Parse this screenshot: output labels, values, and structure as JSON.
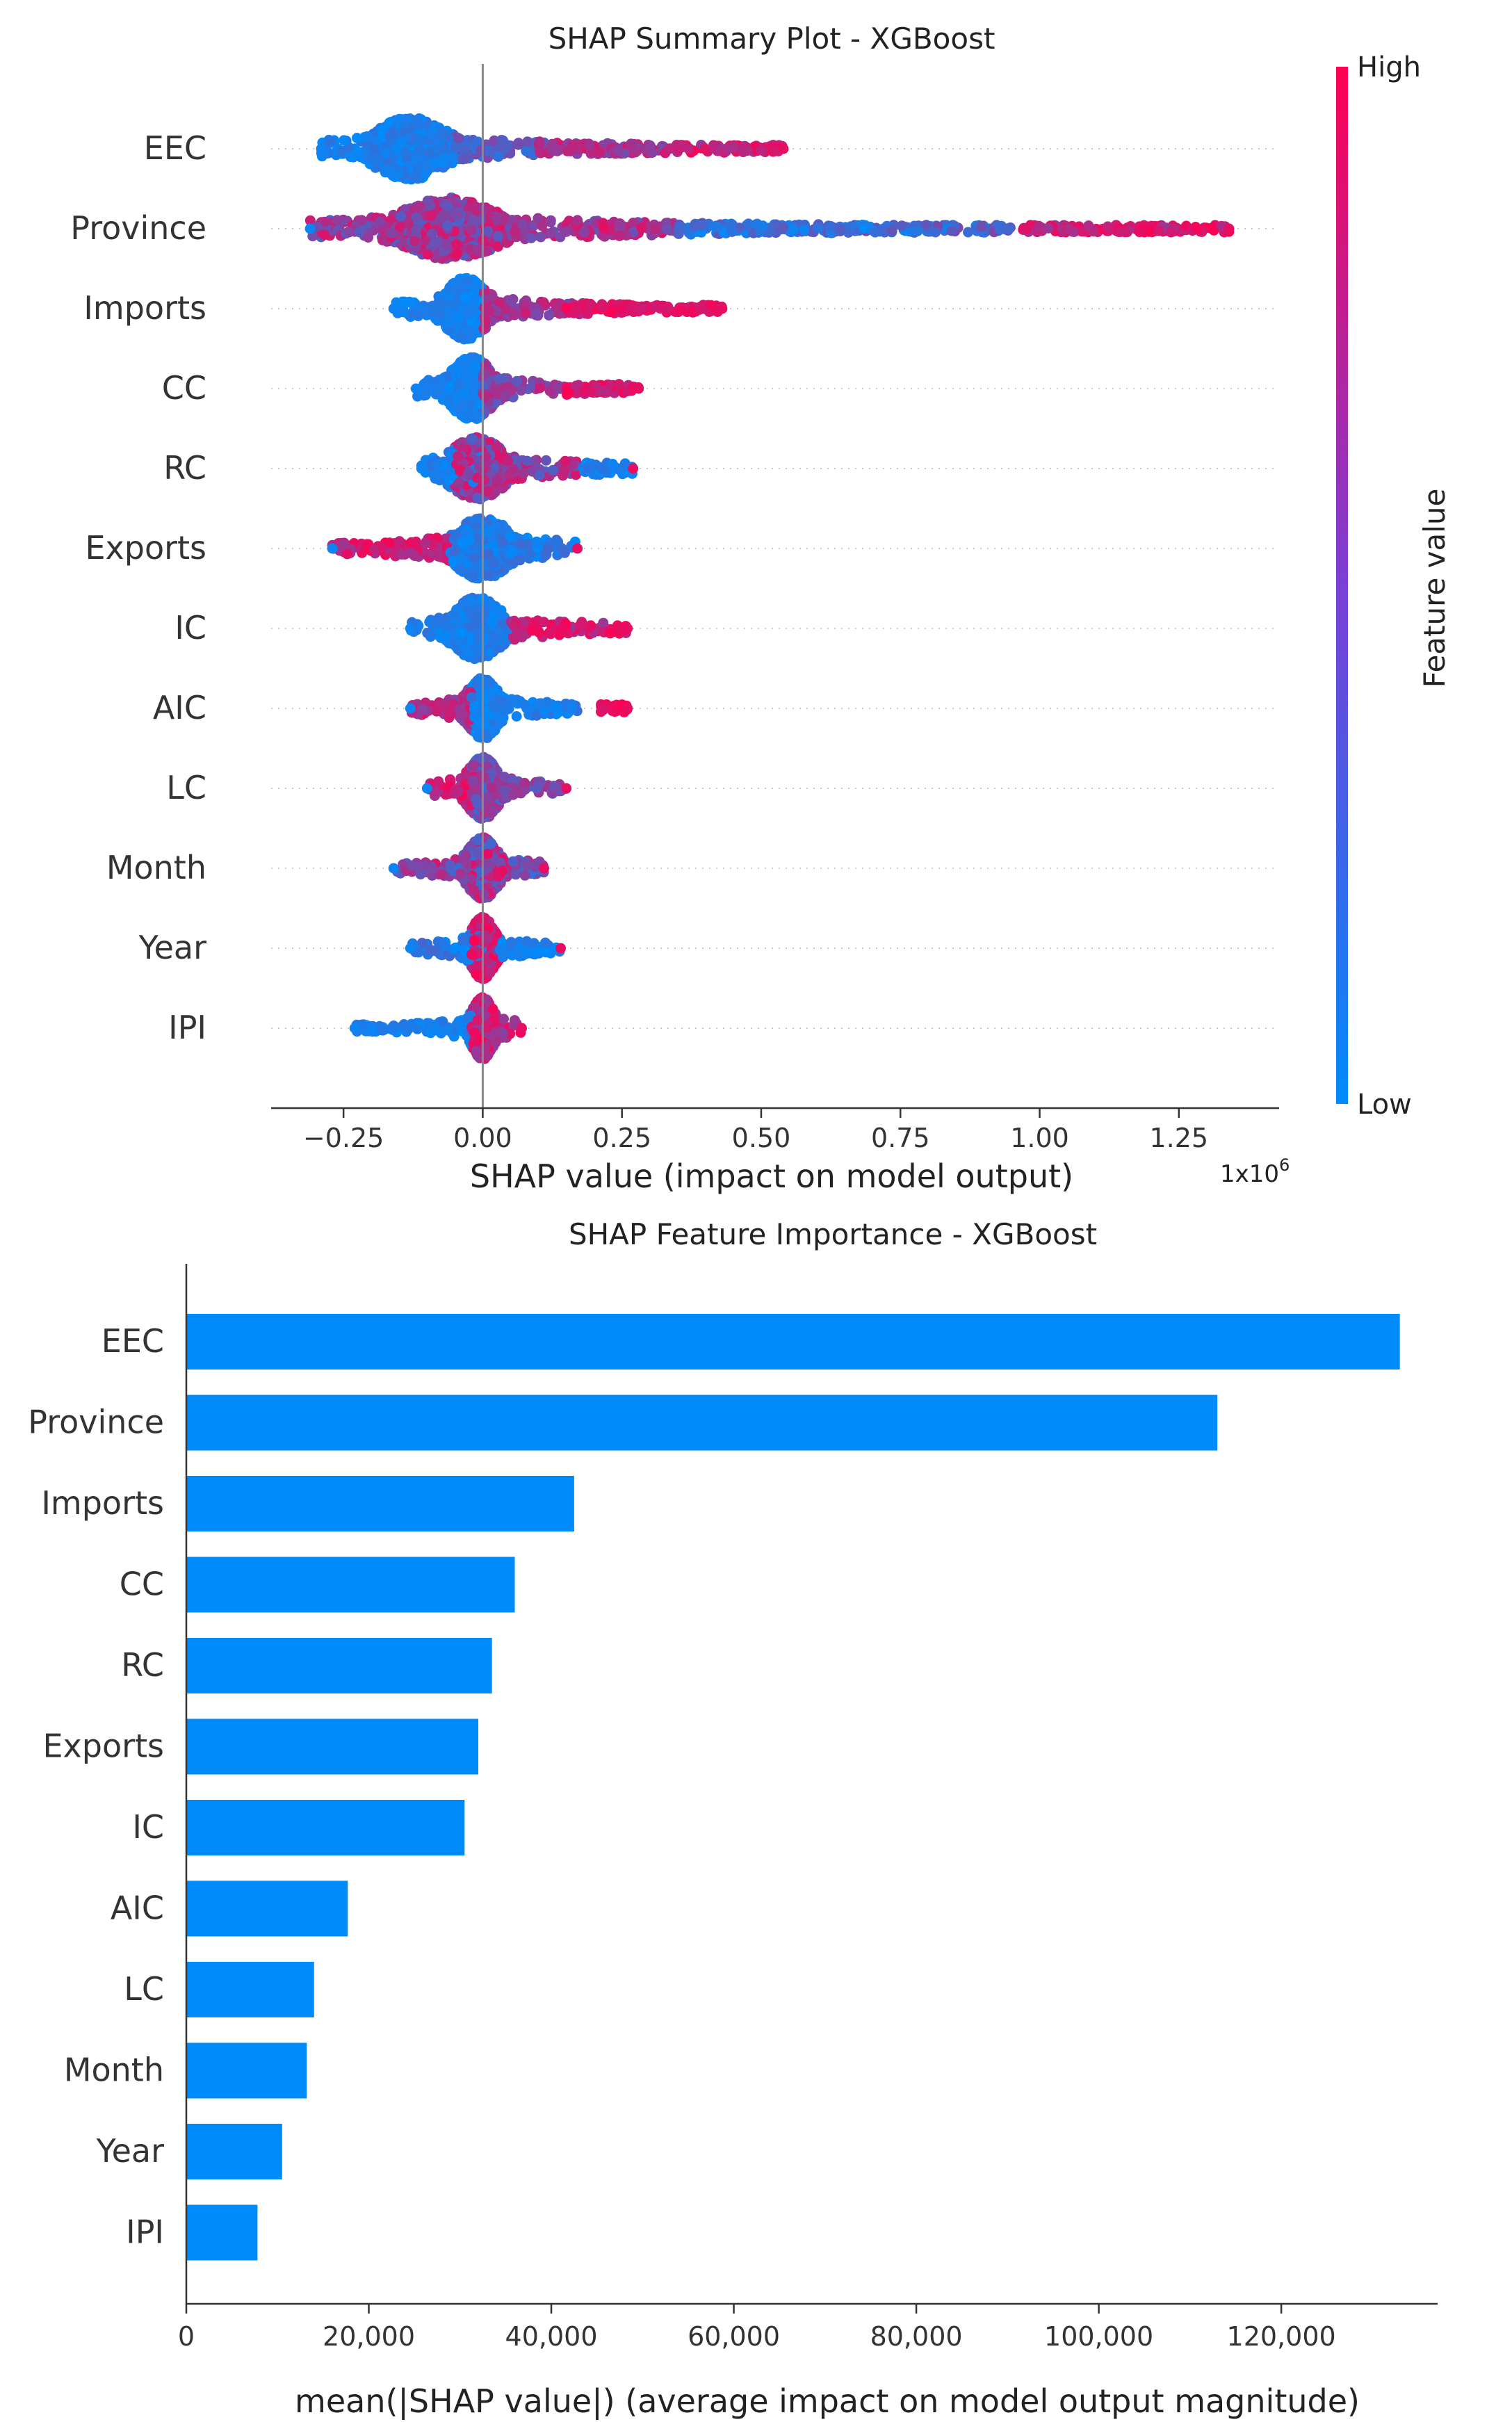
{
  "chart_data": [
    {
      "type": "scatter",
      "subtype": "beeswarm",
      "title": "SHAP Summary Plot - XGBoost",
      "xlabel": "SHAP value (impact on model output)",
      "x_multiplier": "1x10",
      "x_multiplier_exponent": "6",
      "xlim": [
        -0.38,
        1.43
      ],
      "xticks": [
        -0.25,
        0.0,
        0.25,
        0.5,
        0.75,
        1.0,
        1.25
      ],
      "xtick_labels": [
        "−0.25",
        "0.00",
        "0.25",
        "0.50",
        "0.75",
        "1.00",
        "1.25"
      ],
      "zero_line": 0.0,
      "colorbar": {
        "label": "Feature value",
        "high_label": "High",
        "low_label": "Low",
        "low_color": "#008bfb",
        "high_color": "#ff0052"
      },
      "features": [
        {
          "name": "EEC",
          "min": -0.29,
          "max": 0.54,
          "peak": -0.13,
          "width": 0.06,
          "clusters": [
            {
              "min": -0.29,
              "max": -0.05,
              "v": [
                0.0,
                0.2
              ]
            },
            {
              "min": -0.05,
              "max": 0.12,
              "v": [
                0.1,
                0.55
              ]
            },
            {
              "min": 0.1,
              "max": 0.35,
              "v": [
                0.45,
                0.85
              ]
            },
            {
              "min": 0.35,
              "max": 0.54,
              "v": [
                0.6,
                1.0
              ]
            }
          ]
        },
        {
          "name": "Province",
          "min": -0.31,
          "max": 1.34,
          "peak": -0.06,
          "width": 0.08,
          "clusters": [
            {
              "min": -0.31,
              "max": 0.05,
              "v": [
                0.3,
                0.9
              ]
            },
            {
              "min": 0.05,
              "max": 0.35,
              "v": [
                0.4,
                0.9
              ]
            },
            {
              "min": 0.35,
              "max": 0.62,
              "v": [
                0.0,
                0.4
              ]
            },
            {
              "min": 0.62,
              "max": 0.95,
              "v": [
                0.0,
                0.5
              ]
            },
            {
              "min": 0.97,
              "max": 1.34,
              "v": [
                0.6,
                1.0
              ]
            }
          ]
        },
        {
          "name": "Imports",
          "min": -0.16,
          "max": 0.43,
          "peak": -0.03,
          "width": 0.035,
          "clusters": [
            {
              "min": -0.16,
              "max": 0.0,
              "v": [
                0.0,
                0.15
              ]
            },
            {
              "min": 0.0,
              "max": 0.2,
              "v": [
                0.4,
                0.8
              ]
            },
            {
              "min": 0.15,
              "max": 0.43,
              "v": [
                0.8,
                1.0
              ]
            }
          ]
        },
        {
          "name": "CC",
          "min": -0.12,
          "max": 0.28,
          "peak": -0.02,
          "width": 0.035,
          "clusters": [
            {
              "min": -0.12,
              "max": 0.0,
              "v": [
                0.0,
                0.15
              ]
            },
            {
              "min": 0.0,
              "max": 0.15,
              "v": [
                0.3,
                0.8
              ]
            },
            {
              "min": 0.15,
              "max": 0.28,
              "v": [
                0.7,
                1.0
              ]
            }
          ]
        },
        {
          "name": "RC",
          "min": -0.11,
          "max": 0.27,
          "peak": -0.01,
          "width": 0.045,
          "clusters": [
            {
              "min": -0.11,
              "max": 0.0,
              "v": [
                0.0,
                0.2
              ]
            },
            {
              "min": -0.05,
              "max": 0.18,
              "v": [
                0.3,
                0.9
              ]
            },
            {
              "min": 0.18,
              "max": 0.27,
              "v": [
                0.0,
                0.2
              ]
            }
          ]
        },
        {
          "name": "Exports",
          "min": -0.27,
          "max": 0.17,
          "peak": 0.0,
          "width": 0.045,
          "clusters": [
            {
              "min": -0.27,
              "max": -0.05,
              "v": [
                0.6,
                1.0
              ]
            },
            {
              "min": -0.06,
              "max": 0.17,
              "v": [
                0.0,
                0.25
              ]
            }
          ]
        },
        {
          "name": "IC",
          "min": -0.13,
          "max": 0.26,
          "peak": -0.01,
          "width": 0.04,
          "clusters": [
            {
              "min": -0.13,
              "max": 0.05,
              "v": [
                0.0,
                0.2
              ]
            },
            {
              "min": 0.05,
              "max": 0.26,
              "v": [
                0.6,
                1.0
              ]
            }
          ]
        },
        {
          "name": "AIC",
          "min": -0.13,
          "max": 0.26,
          "peak": 0.0,
          "width": 0.025,
          "clusters": [
            {
              "min": -0.13,
              "max": -0.02,
              "v": [
                0.5,
                0.9
              ]
            },
            {
              "min": -0.02,
              "max": 0.17,
              "v": [
                0.0,
                0.2
              ]
            },
            {
              "min": 0.21,
              "max": 0.26,
              "v": [
                0.85,
                1.0
              ]
            }
          ]
        },
        {
          "name": "LC",
          "min": -0.1,
          "max": 0.15,
          "peak": 0.0,
          "width": 0.025,
          "clusters": [
            {
              "min": -0.1,
              "max": -0.01,
              "v": [
                0.6,
                1.0
              ]
            },
            {
              "min": -0.02,
              "max": 0.15,
              "v": [
                0.2,
                0.7
              ]
            }
          ]
        },
        {
          "name": "Month",
          "min": -0.16,
          "max": 0.11,
          "peak": 0.0,
          "width": 0.025,
          "clusters": [
            {
              "min": -0.16,
              "max": 0.11,
              "v": [
                0.2,
                0.9
              ]
            }
          ]
        },
        {
          "name": "Year",
          "min": -0.13,
          "max": 0.14,
          "peak": 0.0,
          "width": 0.02,
          "clusters": [
            {
              "min": -0.13,
              "max": 0.0,
              "v": [
                0.0,
                0.3
              ]
            },
            {
              "min": -0.02,
              "max": 0.03,
              "v": [
                0.6,
                1.0
              ]
            },
            {
              "min": 0.03,
              "max": 0.14,
              "v": [
                0.0,
                0.2
              ]
            }
          ]
        },
        {
          "name": "IPI",
          "min": -0.23,
          "max": 0.07,
          "peak": 0.0,
          "width": 0.018,
          "clusters": [
            {
              "min": -0.23,
              "max": -0.02,
              "v": [
                0.0,
                0.15
              ]
            },
            {
              "min": -0.02,
              "max": 0.07,
              "v": [
                0.5,
                1.0
              ]
            }
          ]
        }
      ]
    },
    {
      "type": "bar",
      "orientation": "horizontal",
      "title": "SHAP Feature Importance - XGBoost",
      "xlabel": "mean(|SHAP value|) (average impact on model output magnitude)",
      "categories": [
        "EEC",
        "Province",
        "Imports",
        "CC",
        "RC",
        "Exports",
        "IC",
        "AIC",
        "LC",
        "Month",
        "Year",
        "IPI"
      ],
      "values": [
        133000,
        113000,
        42500,
        36000,
        33500,
        32000,
        30500,
        17700,
        14000,
        13200,
        10500,
        7800
      ],
      "xlim": [
        0,
        135000
      ],
      "xticks": [
        0,
        20000,
        40000,
        60000,
        80000,
        100000,
        120000
      ],
      "xtick_labels": [
        "0",
        "20,000",
        "40,000",
        "60,000",
        "80,000",
        "100,000",
        "120,000"
      ],
      "bar_color": "#008bfb"
    }
  ]
}
